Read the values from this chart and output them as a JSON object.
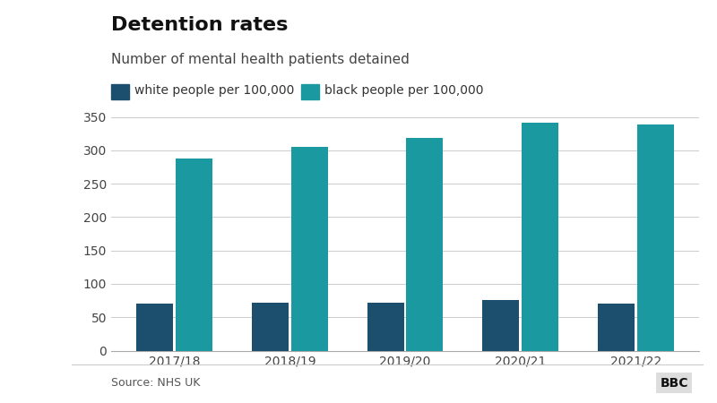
{
  "title": "Detention rates",
  "subtitle": "Number of mental health patients detained",
  "categories": [
    "2017/18",
    "2018/19",
    "2019/20",
    "2020/21",
    "2021/22"
  ],
  "white_values": [
    70,
    72,
    72,
    76,
    71
  ],
  "black_values": [
    287,
    305,
    318,
    341,
    338
  ],
  "white_color": "#1c4f6e",
  "black_color": "#1a9aa0",
  "ylim": [
    0,
    350
  ],
  "yticks": [
    0,
    50,
    100,
    150,
    200,
    250,
    300,
    350
  ],
  "white_label": "white people per 100,000",
  "black_label": "black people per 100,000",
  "source_text": "Source: NHS UK",
  "bbc_text": "BBC",
  "background_color": "#ffffff",
  "title_fontsize": 16,
  "subtitle_fontsize": 11,
  "legend_fontsize": 10,
  "tick_fontsize": 10,
  "source_fontsize": 9
}
